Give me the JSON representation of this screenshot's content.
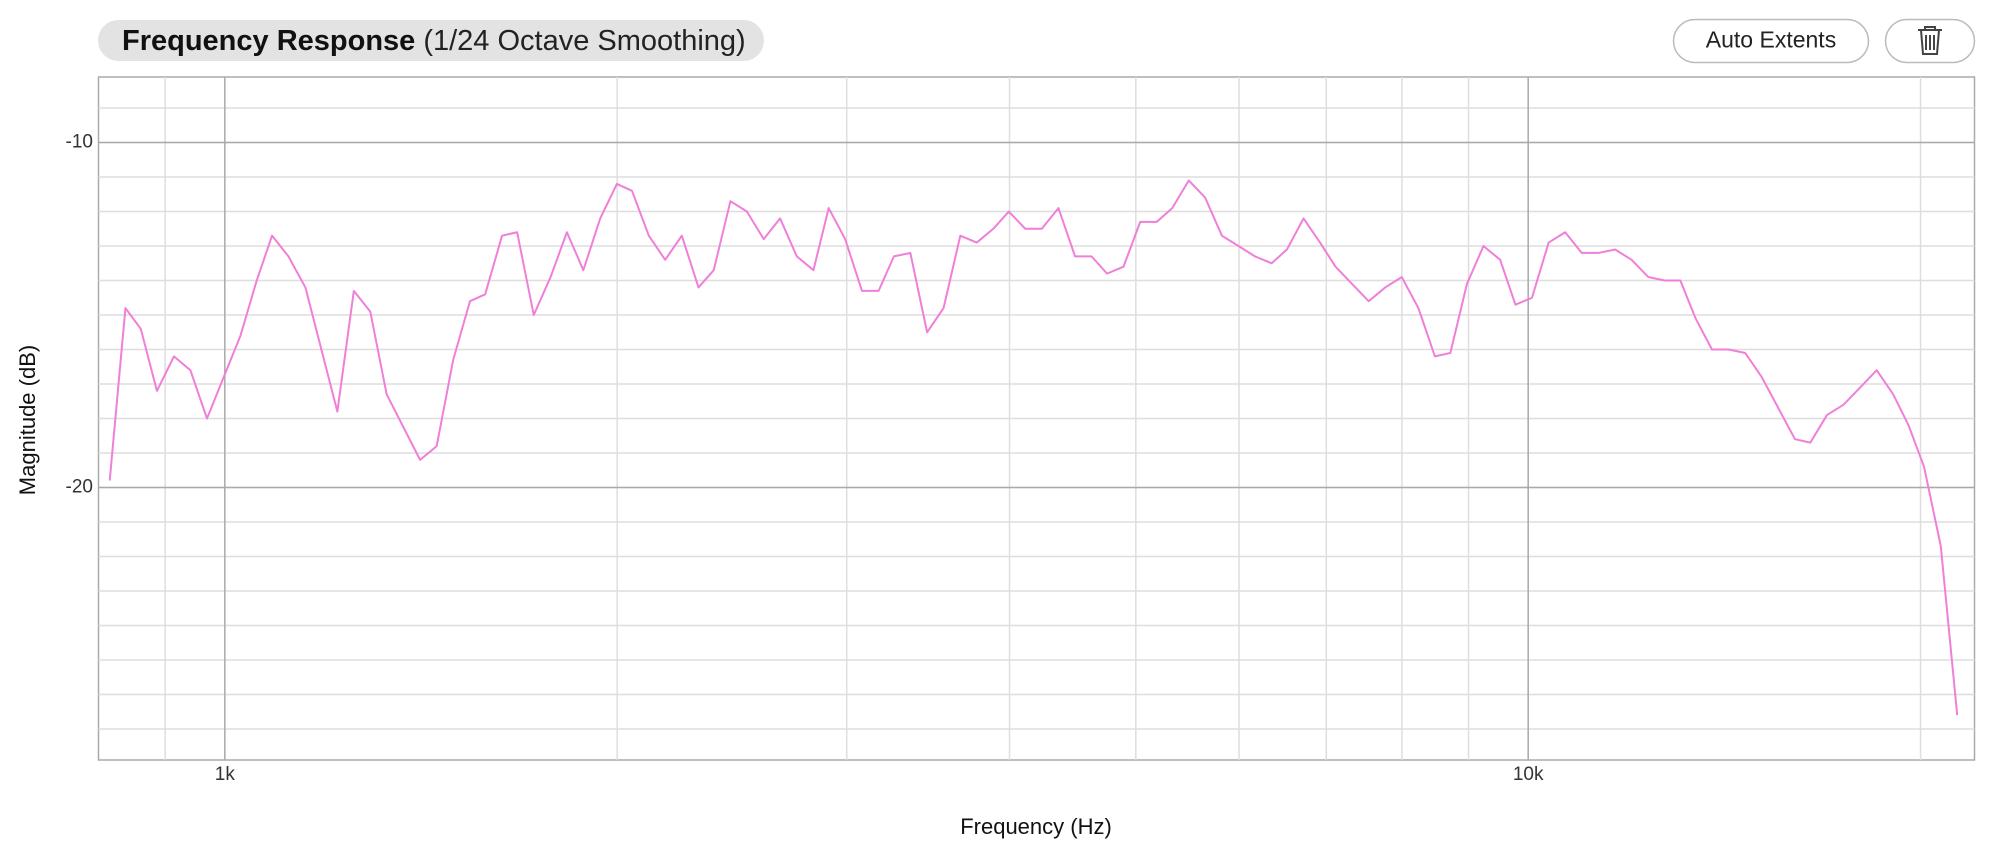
{
  "chart_data": {
    "type": "line",
    "title": "Frequency Response",
    "subtitle": "(1/24 Octave Smoothing)",
    "x_label": "Frequency (Hz)",
    "y_label": "Magnitude (dB)",
    "log_x": true,
    "grid": true,
    "color": "#f07fd8",
    "xlim": [
      800,
      22000
    ],
    "xticks": [
      {
        "value": 1000,
        "label": "1k"
      },
      {
        "value": 10000,
        "label": "10k"
      }
    ],
    "ylim": [
      -27.9,
      -8.1
    ],
    "yticks": [
      -10,
      -20
    ],
    "x": [
      816,
      839,
      862,
      887,
      914,
      941,
      969,
      1028,
      1058,
      1087,
      1119,
      1153,
      1220,
      1256,
      1293,
      1331,
      1412,
      1454,
      1497,
      1542,
      1584,
      1632,
      1676,
      1726,
      1778,
      1830,
      1884,
      1941,
      1999,
      2053,
      2115,
      2177,
      2242,
      2309,
      2372,
      2443,
      2515,
      2591,
      2667,
      2747,
      2829,
      2906,
      2992,
      3082,
      3174,
      3261,
      3357,
      3458,
      3560,
      3667,
      3775,
      3887,
      3995,
      4113,
      4235,
      4361,
      4491,
      4624,
      4752,
      4892,
      5039,
      5188,
      5332,
      5490,
      5652,
      5821,
      5994,
      6171,
      6356,
      6530,
      6724,
      6923,
      7115,
      7326,
      7544,
      7768,
      7998,
      8237,
      8481,
      8715,
      8974,
      9240,
      9517,
      9777,
      10067,
      10368,
      10675,
      10992,
      11322,
      11659,
      12004,
      12365,
      12732,
      13084,
      13442,
      13836,
      14250,
      14672,
      15108,
      16021,
      16462,
      16952,
      17455,
      17978,
      18509,
      19056,
      19582,
      20124,
      20728,
      21339
    ],
    "values": [
      -19.8,
      -14.8,
      -15.4,
      -17.2,
      -16.2,
      -16.6,
      -18.0,
      -15.6,
      -14.0,
      -12.7,
      -13.3,
      -14.2,
      -17.8,
      -14.3,
      -14.9,
      -17.3,
      -19.2,
      -18.8,
      -16.3,
      -14.6,
      -14.4,
      -12.7,
      -12.6,
      -15.0,
      -13.9,
      -12.6,
      -13.7,
      -12.2,
      -11.2,
      -11.4,
      -12.7,
      -13.4,
      -12.7,
      -14.2,
      -13.7,
      -11.7,
      -12.0,
      -12.8,
      -12.2,
      -13.3,
      -13.7,
      -11.9,
      -12.8,
      -14.3,
      -14.3,
      -13.3,
      -13.2,
      -15.5,
      -14.8,
      -12.7,
      -12.9,
      -12.5,
      -12.0,
      -12.5,
      -12.5,
      -11.9,
      -13.3,
      -13.3,
      -13.8,
      -13.6,
      -12.3,
      -12.3,
      -11.9,
      -11.1,
      -11.6,
      -12.7,
      -13.0,
      -13.3,
      -13.5,
      -13.1,
      -12.2,
      -12.9,
      -13.6,
      -14.1,
      -14.6,
      -14.2,
      -13.9,
      -14.8,
      -16.2,
      -16.1,
      -14.1,
      -13.0,
      -13.4,
      -14.7,
      -14.5,
      -12.9,
      -12.6,
      -13.2,
      -13.2,
      -13.1,
      -13.4,
      -13.9,
      -14.0,
      -14.0,
      -15.1,
      -16.0,
      -16.0,
      -16.1,
      -16.8,
      -18.6,
      -18.7,
      -17.9,
      -17.6,
      -17.1,
      -16.6,
      -17.3,
      -18.2,
      -19.4,
      -21.7,
      -26.6
    ]
  },
  "toolbar": {
    "buttons": [
      "Auto Extents"
    ]
  }
}
